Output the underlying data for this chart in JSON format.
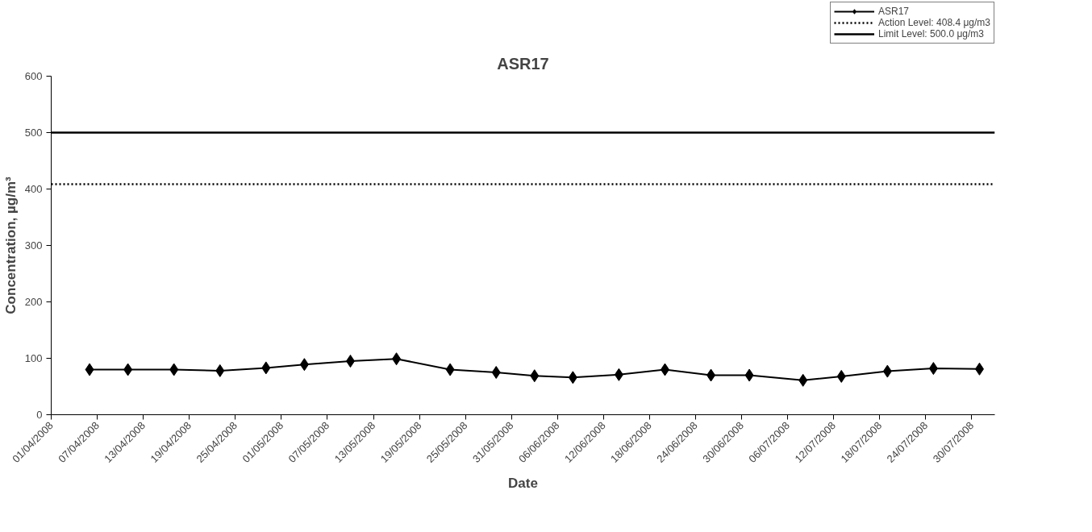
{
  "chart_data": {
    "type": "line",
    "title": "ASR17",
    "xlabel": "Date",
    "ylabel": "Concentration, µg/m³",
    "x": [
      "2008-04-06",
      "2008-04-11",
      "2008-04-17",
      "2008-04-23",
      "2008-04-29",
      "2008-05-04",
      "2008-05-10",
      "2008-05-16",
      "2008-05-23",
      "2008-05-29",
      "2008-06-03",
      "2008-06-08",
      "2008-06-14",
      "2008-06-20",
      "2008-06-26",
      "2008-07-01",
      "2008-07-08",
      "2008-07-13",
      "2008-07-19",
      "2008-07-25",
      "2008-07-31"
    ],
    "series": [
      {
        "name": "ASR17",
        "color": "#000000",
        "values": [
          80,
          80,
          80,
          78,
          83,
          89,
          95,
          99,
          80,
          75,
          69,
          66,
          71,
          80,
          70,
          70,
          61,
          68,
          77,
          82,
          81
        ]
      }
    ],
    "marker": "diamond",
    "line_style": "solid",
    "grid": false,
    "legend": "top right",
    "ref_lines": [
      {
        "axis": "y",
        "value": 408.4,
        "label": "Action Level: 408.4 μg/m3",
        "line_style": "dotted",
        "color": "#000000"
      },
      {
        "axis": "y",
        "value": 500.0,
        "label": "Limit Level: 500.0 μg/m3",
        "line_style": "solid",
        "color": "#000000"
      }
    ],
    "xlim": [
      "2008-04-01",
      "2008-08-02"
    ],
    "ylim": [
      0,
      600
    ],
    "yticks": [
      0,
      100,
      200,
      300,
      400,
      500,
      600
    ],
    "xticks": [
      {
        "value": "2008-04-01",
        "label": "01/04/2008"
      },
      {
        "value": "2008-04-07",
        "label": "07/04/2008"
      },
      {
        "value": "2008-04-13",
        "label": "13/04/2008"
      },
      {
        "value": "2008-04-19",
        "label": "19/04/2008"
      },
      {
        "value": "2008-04-25",
        "label": "25/04/2008"
      },
      {
        "value": "2008-05-01",
        "label": "01/05/2008"
      },
      {
        "value": "2008-05-07",
        "label": "07/05/2008"
      },
      {
        "value": "2008-05-13",
        "label": "13/05/2008"
      },
      {
        "value": "2008-05-19",
        "label": "19/05/2008"
      },
      {
        "value": "2008-05-25",
        "label": "25/05/2008"
      },
      {
        "value": "2008-05-31",
        "label": "31/05/2008"
      },
      {
        "value": "2008-06-06",
        "label": "06/06/2008"
      },
      {
        "value": "2008-06-12",
        "label": "12/06/2008"
      },
      {
        "value": "2008-06-18",
        "label": "18/06/2008"
      },
      {
        "value": "2008-06-24",
        "label": "24/06/2008"
      },
      {
        "value": "2008-06-30",
        "label": "30/06/2008"
      },
      {
        "value": "2008-07-06",
        "label": "06/07/2008"
      },
      {
        "value": "2008-07-12",
        "label": "12/07/2008"
      },
      {
        "value": "2008-07-18",
        "label": "18/07/2008"
      },
      {
        "value": "2008-07-24",
        "label": "24/07/2008"
      },
      {
        "value": "2008-07-30",
        "label": "30/07/2008"
      }
    ]
  }
}
